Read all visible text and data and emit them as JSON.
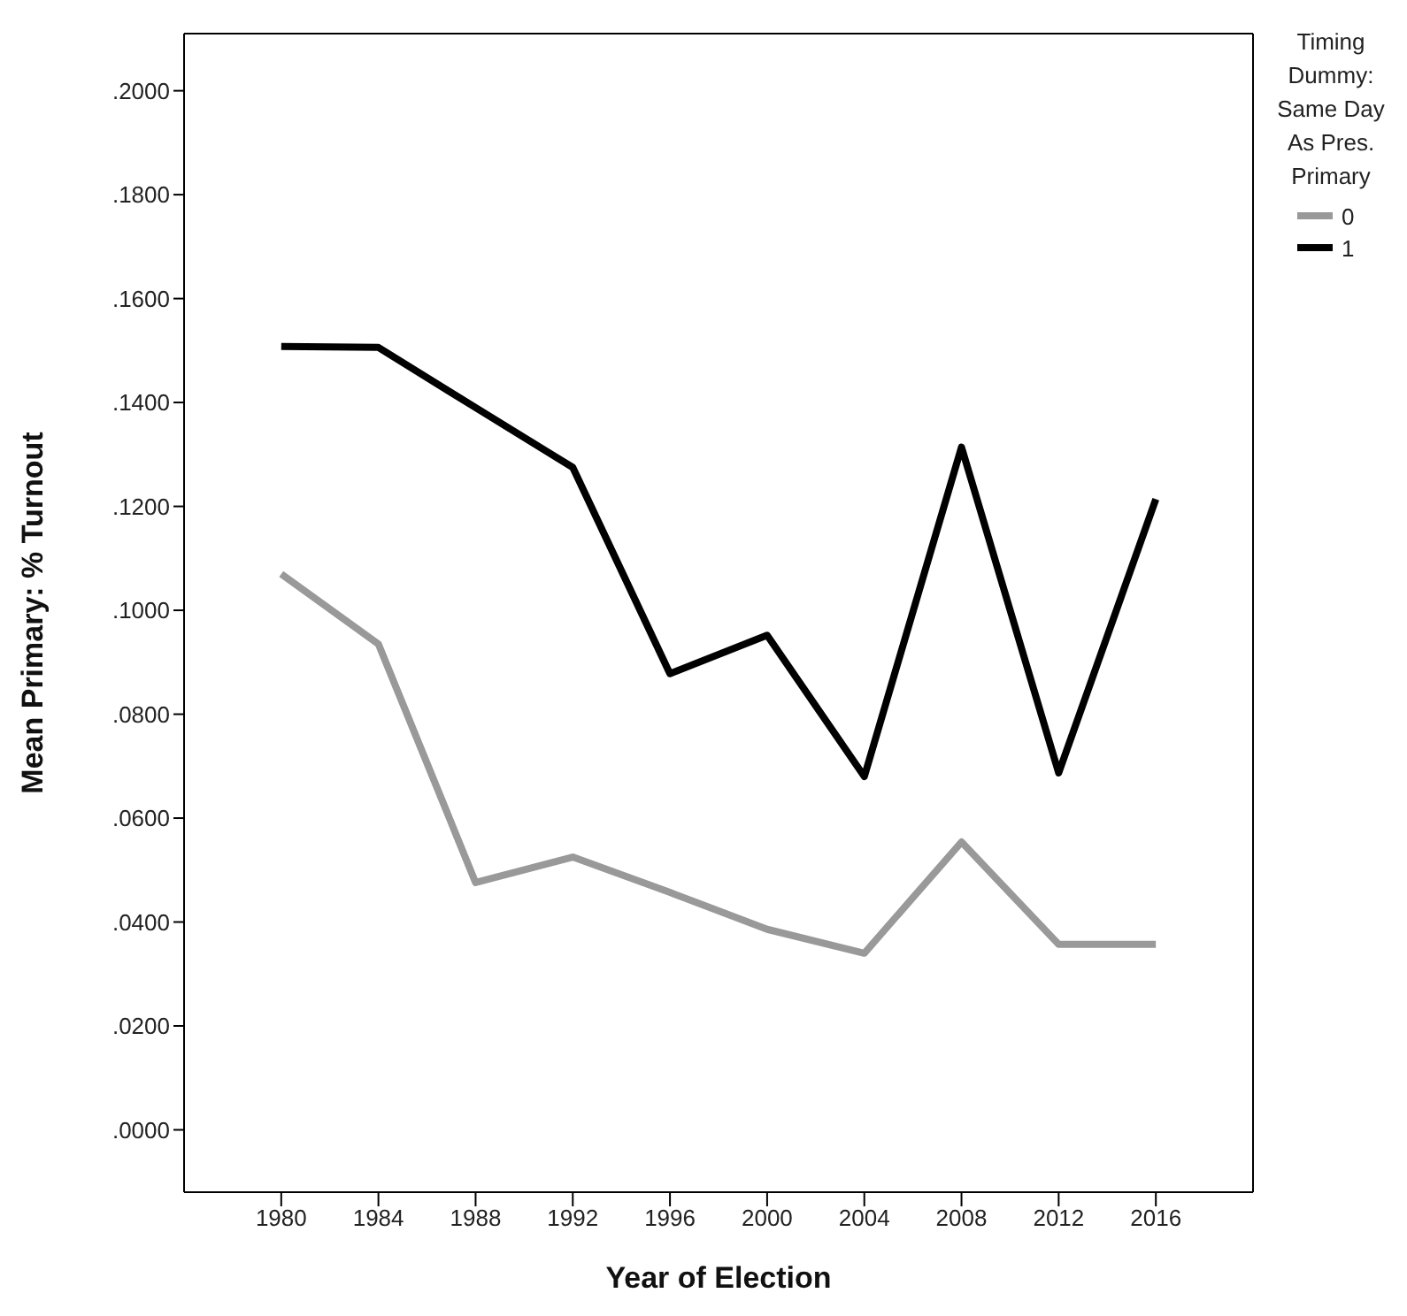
{
  "chart_data": {
    "type": "line",
    "xlabel": "Year of Election",
    "ylabel": "Mean Primary: % Turnout",
    "legend_title": "Timing Dummy: Same Day As Pres. Primary",
    "x": [
      1980,
      1984,
      1988,
      1992,
      1996,
      2000,
      2004,
      2008,
      2012,
      2016
    ],
    "xlim": [
      1976,
      2020
    ],
    "xticks": [
      1980,
      1984,
      1988,
      1992,
      1996,
      2000,
      2004,
      2008,
      2012,
      2016
    ],
    "ylim": [
      -0.012,
      0.211
    ],
    "yticks": [
      {
        "value": 0,
        "label": ".0000"
      },
      {
        "value": 0.02,
        "label": ".0200"
      },
      {
        "value": 0.04,
        "label": ".0400"
      },
      {
        "value": 0.06,
        "label": ".0600"
      },
      {
        "value": 0.08,
        "label": ".0800"
      },
      {
        "value": 0.1,
        "label": ".1000"
      },
      {
        "value": 0.12,
        "label": ".1200"
      },
      {
        "value": 0.14,
        "label": ".1400"
      },
      {
        "value": 0.16,
        "label": ".1600"
      },
      {
        "value": 0.18,
        "label": ".1800"
      },
      {
        "value": 0.2,
        "label": ".2000"
      }
    ],
    "series": [
      {
        "name": "0",
        "color": "#999999",
        "values": [
          0.107,
          0.0935,
          0.0476,
          0.0525,
          0.0457,
          0.0386,
          0.034,
          0.0554,
          0.0357,
          0.0357
        ]
      },
      {
        "name": "1",
        "color": "#000000",
        "values": [
          0.1508,
          0.1506,
          0.139,
          0.1275,
          0.0878,
          0.0952,
          0.068,
          0.1314,
          0.0687,
          0.1214
        ]
      }
    ],
    "grid": false,
    "legend": "right",
    "marker": "none",
    "line_style": "solid"
  }
}
